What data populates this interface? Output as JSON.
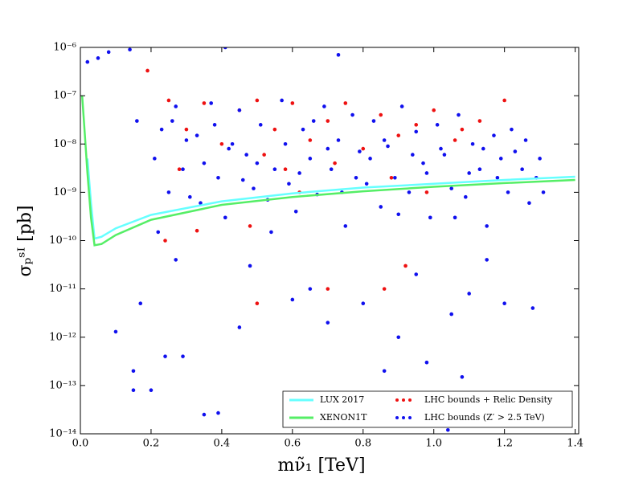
{
  "chart_data": {
    "type": "scatter",
    "x_label": "mν̃₁ [TeV]",
    "y_label": "σₚˢᴵ [pb]",
    "log_y": true,
    "legend": "lower right",
    "xlim": [
      0,
      1.41
    ],
    "ylim": [
      1e-14,
      1e-06
    ],
    "xticks": [
      {
        "value": 0,
        "label": "0.0"
      },
      0.2,
      0.4,
      0.6,
      0.8,
      {
        "value": 1,
        "label": "1.0"
      },
      1.2,
      1.4
    ],
    "yticks": [
      {
        "value": 1e-14,
        "label": "10⁻¹⁴"
      },
      {
        "value": 1e-13,
        "label": "10⁻¹³"
      },
      {
        "value": 1e-12,
        "label": "10⁻¹²"
      },
      {
        "value": 1e-11,
        "label": "10⁻¹¹"
      },
      {
        "value": 1e-10,
        "label": "10⁻¹⁰"
      },
      {
        "value": 1e-09,
        "label": "10⁻⁹"
      },
      {
        "value": 1e-08,
        "label": "10⁻⁸"
      },
      {
        "value": 1e-07,
        "label": "10⁻⁷"
      },
      {
        "value": 1e-06,
        "label": "10⁻⁶"
      }
    ],
    "series": [
      {
        "name": "LUX 2017",
        "type": "line",
        "color": "#66ffff",
        "x": [
          0.005,
          0.01,
          0.02,
          0.03,
          0.04,
          0.06,
          0.1,
          0.2,
          0.4,
          0.6,
          0.8,
          1.0,
          1.2,
          1.4
        ],
        "values": [
          null,
          null,
          5e-09,
          6e-10,
          1.1e-10,
          1.2e-10,
          1.8e-10,
          3.4e-10,
          6.5e-10,
          9.5e-10,
          1.25e-09,
          1.5e-09,
          1.8e-09,
          2.1e-09
        ]
      },
      {
        "name": "XENON1T",
        "type": "line",
        "color": "#55ee66",
        "x": [
          0.005,
          0.01,
          0.02,
          0.03,
          0.04,
          0.06,
          0.1,
          0.2,
          0.4,
          0.6,
          0.8,
          1.0,
          1.2,
          1.4
        ],
        "values": [
          1e-07,
          3e-08,
          2.5e-09,
          3e-10,
          8e-11,
          8.5e-11,
          1.3e-10,
          2.7e-10,
          5.5e-10,
          8e-10,
          1.05e-09,
          1.3e-09,
          1.55e-09,
          1.8e-09
        ]
      },
      {
        "name": "LHC bounds + Relic Density",
        "type": "scatter",
        "color": "#ee1111",
        "x": [
          0.19,
          0.25,
          0.3,
          0.35,
          0.4,
          0.45,
          0.5,
          0.55,
          0.6,
          0.65,
          0.7,
          0.75,
          0.8,
          0.85,
          0.9,
          0.95,
          1.0,
          1.08,
          1.13,
          1.2,
          0.28,
          0.48,
          0.52,
          0.62,
          0.72,
          0.88,
          0.92,
          0.86,
          0.7,
          0.5,
          0.24,
          0.33,
          1.06,
          0.58,
          0.98
        ],
        "values": [
          3.3e-07,
          8e-08,
          2e-08,
          7e-08,
          1e-08,
          5e-08,
          8e-08,
          2e-08,
          7e-08,
          1.2e-08,
          3e-08,
          7e-08,
          8e-09,
          4e-08,
          1.5e-08,
          2.5e-08,
          5e-08,
          2e-08,
          3e-08,
          8e-08,
          3e-09,
          2e-10,
          6e-09,
          1e-09,
          4e-09,
          2e-09,
          3e-11,
          1e-11,
          1e-11,
          5e-12,
          1e-10,
          1.6e-10,
          1.2e-08,
          3e-09,
          1e-09
        ]
      },
      {
        "name": "LHC bounds (Z′ > 2.5 TeV)",
        "type": "scatter",
        "color": "#1010ee",
        "x": [
          0.21,
          0.23,
          0.25,
          0.27,
          0.29,
          0.31,
          0.33,
          0.35,
          0.37,
          0.39,
          0.41,
          0.43,
          0.45,
          0.47,
          0.49,
          0.51,
          0.53,
          0.55,
          0.57,
          0.59,
          0.61,
          0.63,
          0.65,
          0.67,
          0.69,
          0.71,
          0.73,
          0.75,
          0.77,
          0.79,
          0.81,
          0.83,
          0.85,
          0.87,
          0.89,
          0.91,
          0.93,
          0.95,
          0.97,
          0.99,
          1.01,
          1.03,
          1.05,
          1.07,
          1.09,
          1.11,
          1.13,
          1.15,
          1.17,
          1.19,
          1.21,
          1.23,
          1.25,
          1.27,
          1.29,
          1.31,
          0.22,
          0.26,
          0.3,
          0.34,
          0.38,
          0.42,
          0.46,
          0.5,
          0.54,
          0.58,
          0.62,
          0.66,
          0.7,
          0.74,
          0.78,
          0.82,
          0.86,
          0.9,
          0.94,
          0.98,
          1.02,
          1.06,
          1.1,
          1.14,
          1.18,
          1.22,
          1.26,
          1.3,
          0.02,
          0.05,
          0.08,
          0.14,
          0.16,
          0.1,
          0.15,
          0.15,
          0.2,
          0.24,
          0.35,
          0.39,
          0.29,
          0.45,
          0.6,
          0.7,
          0.8,
          0.9,
          1.05,
          1.1,
          1.2,
          1.28,
          0.86,
          0.98,
          1.08,
          0.17,
          0.27,
          0.48,
          0.65,
          0.95,
          1.15,
          0.41,
          0.73,
          1.04
        ],
        "values": [
          5e-09,
          2e-08,
          1e-09,
          6e-08,
          3e-09,
          8e-10,
          1.5e-08,
          4e-09,
          7e-08,
          2e-09,
          3e-10,
          1e-08,
          5e-08,
          6e-09,
          1.2e-09,
          2.5e-08,
          7e-10,
          3e-09,
          8e-08,
          1.5e-09,
          4e-10,
          2e-08,
          5e-09,
          9e-10,
          6e-08,
          3e-09,
          1.2e-08,
          2e-10,
          4e-08,
          7e-09,
          1.5e-09,
          3e-08,
          5e-10,
          9e-09,
          2e-09,
          6e-08,
          1e-09,
          1.8e-08,
          4e-09,
          3e-10,
          2.5e-08,
          6e-09,
          1.2e-09,
          4e-08,
          8e-10,
          1e-08,
          3e-09,
          2e-10,
          1.5e-08,
          5e-09,
          1e-09,
          7e-09,
          3e-09,
          6e-10,
          2e-09,
          1e-09,
          1.5e-10,
          3e-08,
          1.2e-08,
          6e-10,
          2.5e-08,
          8e-09,
          1.8e-09,
          4e-09,
          1.5e-10,
          1e-08,
          2.5e-09,
          3e-08,
          8e-09,
          1e-09,
          2e-09,
          5e-09,
          1.2e-08,
          3.5e-10,
          6e-09,
          2.5e-09,
          8e-09,
          3e-10,
          2.5e-09,
          8e-09,
          2e-09,
          2e-08,
          1.2e-08,
          5e-09,
          5e-07,
          6e-07,
          8e-07,
          9e-07,
          3e-08,
          1.3e-12,
          2e-13,
          8e-14,
          8e-14,
          4e-13,
          2.5e-14,
          2.7e-14,
          4e-13,
          1.6e-12,
          6e-12,
          2e-12,
          5e-12,
          1e-12,
          3e-12,
          8e-12,
          5e-12,
          4e-12,
          2e-13,
          3e-13,
          1.5e-13,
          5e-12,
          4e-11,
          3e-11,
          1e-11,
          2e-11,
          4e-11,
          1e-06,
          7e-07,
          1.2e-14
        ]
      }
    ]
  }
}
